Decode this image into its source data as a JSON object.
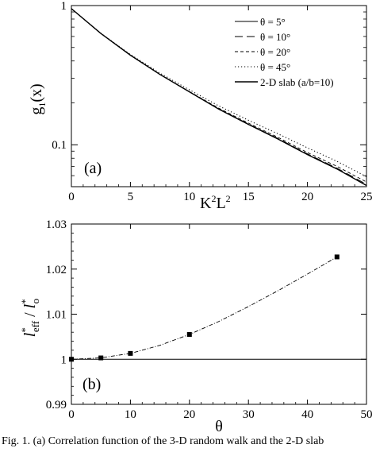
{
  "chart_data": [
    {
      "type": "line",
      "panel_label": "(a)",
      "xlabel": "K²L²",
      "xlabel_parts": {
        "base1": "K",
        "sup1": "2",
        "base2": "L",
        "sup2": "2"
      },
      "ylabel": "g₁(x)",
      "ylabel_parts": {
        "base": "g",
        "sub": "1",
        "rest": "(x)"
      },
      "xlim": [
        0,
        25
      ],
      "ylim": [
        0.05,
        1
      ],
      "yscale": "log",
      "x_ticks": [
        0,
        5,
        10,
        15,
        20,
        25
      ],
      "x_tick_labels": [
        "0",
        "5",
        "10",
        "15",
        "20",
        "25"
      ],
      "y_ticks": [
        0.1,
        1
      ],
      "y_tick_labels": [
        "0.1",
        "1"
      ],
      "legend_position": "top-right",
      "legend": [
        {
          "label": "θ = 5°",
          "dash": "solid",
          "width": 0.9
        },
        {
          "label": "θ = 10°",
          "dash": "long-dash",
          "width": 0.9
        },
        {
          "label": "θ = 20°",
          "dash": "short-dash",
          "width": 0.9
        },
        {
          "label": "θ = 45°",
          "dash": "dotted",
          "width": 1.1
        },
        {
          "label": "2-D slab (a/b=10)",
          "dash": "solid",
          "width": 1.4
        }
      ],
      "series": [
        {
          "x": [
            0,
            2.5,
            5,
            7.5,
            10,
            12.5,
            15,
            17.5,
            20,
            22.5,
            25
          ],
          "y": [
            0.95,
            0.63,
            0.44,
            0.32,
            0.24,
            0.18,
            0.14,
            0.11,
            0.085,
            0.067,
            0.051
          ]
        },
        {
          "x": [
            0,
            2.5,
            5,
            7.5,
            10,
            12.5,
            15,
            17.5,
            20,
            22.5,
            25
          ],
          "y": [
            0.95,
            0.63,
            0.44,
            0.32,
            0.24,
            0.181,
            0.141,
            0.111,
            0.086,
            0.068,
            0.052
          ]
        },
        {
          "x": [
            0,
            2.5,
            5,
            7.5,
            10,
            12.5,
            15,
            17.5,
            20,
            22.5,
            25
          ],
          "y": [
            0.95,
            0.63,
            0.44,
            0.321,
            0.241,
            0.183,
            0.143,
            0.113,
            0.088,
            0.07,
            0.054
          ]
        },
        {
          "x": [
            0,
            2.5,
            5,
            7.5,
            10,
            12.5,
            15,
            17.5,
            20,
            22.5,
            25
          ],
          "y": [
            0.95,
            0.632,
            0.445,
            0.327,
            0.248,
            0.19,
            0.15,
            0.12,
            0.095,
            0.076,
            0.059
          ]
        },
        {
          "x": [
            0,
            2.5,
            5,
            7.5,
            10,
            12.5,
            15,
            17.5,
            20,
            22.5,
            25
          ],
          "y": [
            0.95,
            0.63,
            0.44,
            0.32,
            0.24,
            0.18,
            0.14,
            0.11,
            0.085,
            0.067,
            0.051
          ]
        }
      ]
    },
    {
      "type": "scatter",
      "panel_label": "(b)",
      "xlabel": "θ",
      "ylabel": "l*eff / l*o",
      "ylabel_parts": {
        "l1": "l",
        "sup1": "*",
        "sub1": "eff",
        "slash": " / ",
        "l2": "l",
        "sup2": "*",
        "sub2": "o"
      },
      "xlim": [
        0,
        50
      ],
      "ylim": [
        0.99,
        1.03
      ],
      "x_ticks": [
        0,
        10,
        20,
        30,
        40,
        50
      ],
      "x_tick_labels": [
        "0",
        "10",
        "20",
        "30",
        "40",
        "50"
      ],
      "y_ticks": [
        0.99,
        1,
        1.01,
        1.02,
        1.03
      ],
      "y_tick_labels": [
        "0.99",
        "1",
        "1.01",
        "1.02",
        "1.03"
      ],
      "reference_line": 1,
      "points": {
        "x": [
          0,
          5,
          10,
          20,
          45
        ],
        "y": [
          1.0,
          1.0003,
          1.0013,
          1.0055,
          1.0227
        ]
      },
      "fit_curve": {
        "x": [
          0,
          5,
          10,
          15,
          20,
          25,
          30,
          35,
          40,
          45
        ],
        "y": [
          1.0,
          1.0003,
          1.0013,
          1.0031,
          1.0055,
          1.0084,
          1.0117,
          1.0152,
          1.0189,
          1.0227
        ]
      }
    }
  ],
  "caption": "Fig. 1.  (a) Correlation function of the 3-D random walk and the 2-D slab"
}
